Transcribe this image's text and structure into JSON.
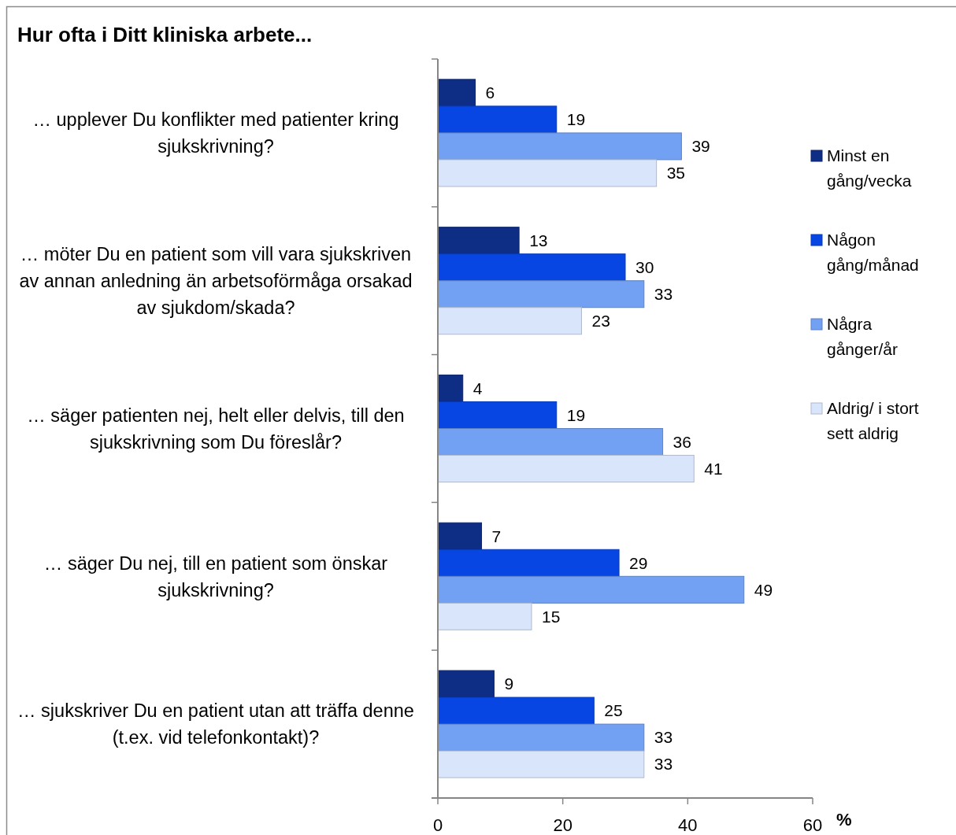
{
  "chart_data": {
    "type": "bar",
    "orientation": "horizontal",
    "title": "Hur ofta i Ditt kliniska arbete...",
    "xlabel": "%",
    "categories": [
      "… upplever Du konflikter med patienter kring sjukskrivning?",
      "… möter Du en patient som vill vara sjukskriven av annan anledning än arbetsoförmåga orsakad av sjukdom/skada?",
      "… säger patienten nej, helt eller delvis, till den sjukskrivning som Du föreslår?",
      "… säger Du nej, till en patient som önskar sjukskrivning?",
      "… sjukskriver Du en patient utan att träffa denne (t.ex. vid telefonkontakt)?"
    ],
    "series": [
      {
        "name": "Minst en gång/vecka",
        "color": "#0e2d84",
        "values": [
          6,
          13,
          4,
          7,
          9
        ]
      },
      {
        "name": "Någon gång/månad",
        "color": "#0846e4",
        "values": [
          19,
          30,
          19,
          29,
          25
        ]
      },
      {
        "name": "Några gånger/år",
        "color": "#72a0f2",
        "values": [
          39,
          33,
          36,
          49,
          33
        ]
      },
      {
        "name": "Aldrig/ i stort sett aldrig",
        "color": "#d9e5fb",
        "values": [
          35,
          23,
          41,
          15,
          33
        ]
      }
    ],
    "xlim": [
      0,
      60
    ],
    "xticks": [
      0,
      20,
      40,
      60
    ],
    "data_labels": true,
    "legend": "right"
  }
}
